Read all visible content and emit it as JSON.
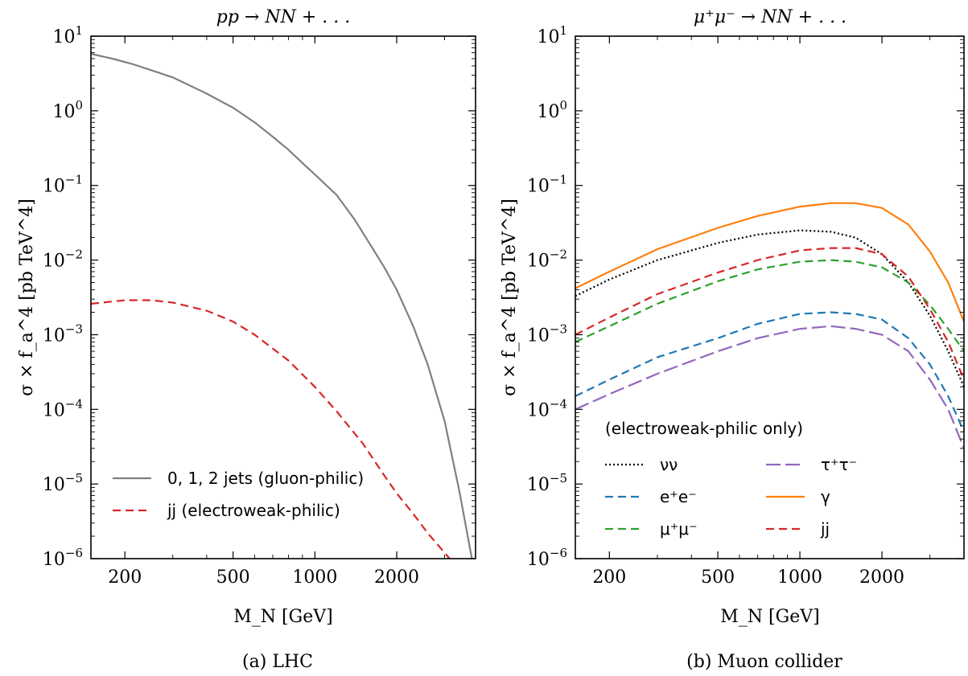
{
  "chart_data": [
    {
      "type": "line",
      "panel": "a",
      "title": "pp → NN + . . .",
      "caption": "(a) LHC",
      "xlabel": "M_N [GeV]",
      "ylabel": "σ × f_a^4 [pb TeV^4]",
      "xscale": "log",
      "yscale": "log",
      "xlim": [
        150,
        3900
      ],
      "ylim": [
        1e-06,
        10
      ],
      "xticks": [
        200,
        500,
        1000,
        2000
      ],
      "xtick_labels": [
        "200",
        "500",
        "1000",
        "2000"
      ],
      "yticks_exp": [
        1,
        0,
        -1,
        -2,
        -3,
        -4,
        -5,
        -6
      ],
      "ytick_base": "10",
      "legend": {
        "placement": "lower-left"
      },
      "series": [
        {
          "name": "0, 1, 2 jets (gluon-philic)",
          "style": "solid",
          "color": "#808080",
          "x": [
            150,
            180,
            210,
            250,
            300,
            400,
            500,
            600,
            700,
            800,
            900,
            1000,
            1200,
            1400,
            1600,
            1800,
            2000,
            2300,
            2600,
            3000,
            3400,
            3800
          ],
          "y": [
            5.8,
            5.0,
            4.3,
            3.5,
            2.8,
            1.7,
            1.1,
            0.7,
            0.45,
            0.3,
            0.2,
            0.14,
            0.075,
            0.035,
            0.016,
            0.008,
            0.004,
            0.0013,
            0.0004,
            7e-05,
            8e-06,
            9e-07
          ]
        },
        {
          "name": "jj (electroweak-philic)",
          "style": "dashed",
          "color": "#d62728",
          "x": [
            150,
            200,
            250,
            300,
            400,
            500,
            600,
            800,
            1000,
            1200,
            1500,
            1800,
            2000,
            2300,
            2600,
            3000,
            3300
          ],
          "y": [
            0.0026,
            0.0029,
            0.0029,
            0.0027,
            0.0021,
            0.0015,
            0.001,
            0.00045,
            0.0002,
            9.5e-05,
            3.5e-05,
            1.3e-05,
            7.5e-06,
            4e-06,
            2.2e-06,
            1.2e-06,
            8e-07
          ]
        }
      ]
    },
    {
      "type": "line",
      "panel": "b",
      "title": "μ⁺μ⁻ → NN + . . .",
      "caption": "(b) Muon collider",
      "xlabel": "M_N [GeV]",
      "ylabel": "σ × f_a^4 [pb TeV^4]",
      "xscale": "log",
      "yscale": "log",
      "xlim": [
        150,
        4000
      ],
      "ylim": [
        1e-06,
        10
      ],
      "xticks": [
        200,
        500,
        1000,
        2000
      ],
      "xtick_labels": [
        "200",
        "500",
        "1000",
        "2000"
      ],
      "yticks_exp": [
        1,
        0,
        -1,
        -2,
        -3,
        -4,
        -5,
        -6
      ],
      "ytick_base": "10",
      "legend": {
        "title": "(electroweak-philic only)",
        "placement": "lower-left",
        "columns": 2
      },
      "series": [
        {
          "name": "νν",
          "style": "dotted",
          "color": "#000000",
          "x": [
            150,
            200,
            300,
            500,
            700,
            1000,
            1300,
            1600,
            2000,
            2500,
            3000,
            3500,
            4000
          ],
          "y": [
            0.0033,
            0.0055,
            0.01,
            0.017,
            0.022,
            0.025,
            0.024,
            0.02,
            0.012,
            0.005,
            0.0018,
            0.0006,
            0.0002
          ]
        },
        {
          "name": "e⁺e⁻",
          "style": "dashed",
          "color": "#1f77b4",
          "x": [
            150,
            200,
            300,
            500,
            700,
            1000,
            1300,
            1600,
            2000,
            2500,
            3000,
            3500,
            4000
          ],
          "y": [
            0.00015,
            0.00025,
            0.0005,
            0.0009,
            0.0014,
            0.0019,
            0.002,
            0.0019,
            0.0016,
            0.0009,
            0.0004,
            0.00015,
            5e-05
          ]
        },
        {
          "name": "μ⁺μ⁻",
          "style": "dashed",
          "color": "#2ca02c",
          "x": [
            150,
            200,
            300,
            500,
            700,
            1000,
            1300,
            1600,
            2000,
            2500,
            3000,
            3500,
            4000
          ],
          "y": [
            0.0008,
            0.0013,
            0.0026,
            0.0052,
            0.0075,
            0.0095,
            0.01,
            0.0095,
            0.008,
            0.005,
            0.0025,
            0.0012,
            0.0006
          ]
        },
        {
          "name": "τ⁺τ⁻",
          "style": "longdash",
          "color": "#9467bd",
          "x": [
            150,
            200,
            300,
            500,
            700,
            1000,
            1300,
            1600,
            2000,
            2500,
            3000,
            3500,
            4000
          ],
          "y": [
            0.0001,
            0.00016,
            0.0003,
            0.0006,
            0.0009,
            0.0012,
            0.0013,
            0.0012,
            0.001,
            0.0006,
            0.00025,
            0.0001,
            3e-05
          ]
        },
        {
          "name": "γ",
          "style": "solid",
          "color": "#ff7f0e",
          "x": [
            150,
            200,
            300,
            500,
            700,
            1000,
            1300,
            1600,
            2000,
            2500,
            3000,
            3500,
            4000
          ],
          "y": [
            0.0042,
            0.007,
            0.014,
            0.027,
            0.039,
            0.052,
            0.058,
            0.058,
            0.05,
            0.03,
            0.013,
            0.005,
            0.0015
          ]
        },
        {
          "name": "jj",
          "style": "dashed",
          "color": "#d62728",
          "x": [
            150,
            200,
            300,
            500,
            700,
            1000,
            1300,
            1600,
            2000,
            2500,
            3000,
            3500,
            4000
          ],
          "y": [
            0.001,
            0.0017,
            0.0035,
            0.0068,
            0.01,
            0.0135,
            0.0145,
            0.0145,
            0.012,
            0.006,
            0.0022,
            0.0008,
            0.00025
          ]
        }
      ]
    }
  ]
}
